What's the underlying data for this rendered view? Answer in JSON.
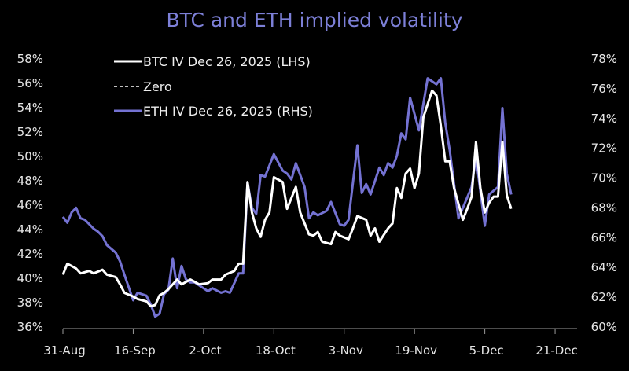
{
  "chart_data": {
    "type": "line",
    "title": "BTC and ETH implied volatility",
    "xlabel": "",
    "ylabel": "",
    "x_ticks": [
      "31-Aug",
      "16-Sep",
      "2-Oct",
      "18-Oct",
      "3-Nov",
      "19-Nov",
      "5-Dec",
      "21-Dec"
    ],
    "xlim": [
      "31-Aug",
      "26-Dec"
    ],
    "ylim_left": [
      36,
      58
    ],
    "ylim_right": [
      60,
      78
    ],
    "y_ticks_left": [
      "36%",
      "38%",
      "40%",
      "42%",
      "44%",
      "46%",
      "48%",
      "50%",
      "52%",
      "54%",
      "56%",
      "58%"
    ],
    "y_ticks_right": [
      "60%",
      "62%",
      "64%",
      "66%",
      "68%",
      "70%",
      "72%",
      "74%",
      "76%",
      "78%"
    ],
    "grid": false,
    "legend_placement": "top-left",
    "background": "#000000",
    "colors": {
      "title": "#7d80d8",
      "btc": "#ffffff",
      "eth": "#7472d2",
      "text": "#e6e6e6",
      "axis": "#9a9a9a"
    },
    "series": [
      {
        "name": "BTC IV Dec 26, 2025 (LHS)",
        "axis": "left",
        "style": "solid",
        "color": "#ffffff",
        "points": [
          [
            "31-Aug",
            40.3
          ],
          [
            "1-Sep",
            41.2
          ],
          [
            "3-Sep",
            40.8
          ],
          [
            "4-Sep",
            40.4
          ],
          [
            "6-Sep",
            40.6
          ],
          [
            "7-Sep",
            40.4
          ],
          [
            "9-Sep",
            40.7
          ],
          [
            "10-Sep",
            40.3
          ],
          [
            "12-Sep",
            40.1
          ],
          [
            "13-Sep",
            39.5
          ],
          [
            "14-Sep",
            38.8
          ],
          [
            "16-Sep",
            38.5
          ],
          [
            "17-Sep",
            38.3
          ],
          [
            "19-Sep",
            38.1
          ],
          [
            "20-Sep",
            37.7
          ],
          [
            "21-Sep",
            37.8
          ],
          [
            "22-Sep",
            38.6
          ],
          [
            "23-Sep",
            38.8
          ],
          [
            "24-Sep",
            39.1
          ],
          [
            "25-Sep",
            39.5
          ],
          [
            "26-Sep",
            39.9
          ],
          [
            "27-Sep",
            39.5
          ],
          [
            "29-Sep",
            39.9
          ],
          [
            "30-Sep",
            39.7
          ],
          [
            "1-Oct",
            39.5
          ],
          [
            "3-Oct",
            39.6
          ],
          [
            "4-Oct",
            39.9
          ],
          [
            "6-Oct",
            39.9
          ],
          [
            "7-Oct",
            40.3
          ],
          [
            "9-Oct",
            40.6
          ],
          [
            "10-Oct",
            41.2
          ],
          [
            "11-Oct",
            41.2
          ],
          [
            "12-Oct",
            47.9
          ],
          [
            "13-Oct",
            45.4
          ],
          [
            "14-Oct",
            44.1
          ],
          [
            "15-Oct",
            43.4
          ],
          [
            "16-Oct",
            44.8
          ],
          [
            "17-Oct",
            45.4
          ],
          [
            "18-Oct",
            48.3
          ],
          [
            "20-Oct",
            47.9
          ],
          [
            "21-Oct",
            45.7
          ],
          [
            "23-Oct",
            47.5
          ],
          [
            "24-Oct",
            45.4
          ],
          [
            "26-Oct",
            43.6
          ],
          [
            "27-Oct",
            43.5
          ],
          [
            "28-Oct",
            43.8
          ],
          [
            "29-Oct",
            43.0
          ],
          [
            "31-Oct",
            42.8
          ],
          [
            "1-Nov",
            43.8
          ],
          [
            "2-Nov",
            43.5
          ],
          [
            "4-Nov",
            43.2
          ],
          [
            "5-Nov",
            44.1
          ],
          [
            "6-Nov",
            45.1
          ],
          [
            "8-Nov",
            44.8
          ],
          [
            "9-Nov",
            43.5
          ],
          [
            "10-Nov",
            44.1
          ],
          [
            "11-Nov",
            43.0
          ],
          [
            "13-Nov",
            44.1
          ],
          [
            "14-Nov",
            44.5
          ],
          [
            "15-Nov",
            47.4
          ],
          [
            "16-Nov",
            46.6
          ],
          [
            "17-Nov",
            48.6
          ],
          [
            "18-Nov",
            49.0
          ],
          [
            "19-Nov",
            47.4
          ],
          [
            "20-Nov",
            48.6
          ],
          [
            "21-Nov",
            53.2
          ],
          [
            "23-Nov",
            55.4
          ],
          [
            "24-Nov",
            55.0
          ],
          [
            "25-Nov",
            52.5
          ],
          [
            "26-Nov",
            49.6
          ],
          [
            "27-Nov",
            49.6
          ],
          [
            "28-Nov",
            47.4
          ],
          [
            "29-Nov",
            46.1
          ],
          [
            "30-Nov",
            44.8
          ],
          [
            "1-Dec",
            45.7
          ],
          [
            "2-Dec",
            46.7
          ],
          [
            "3-Dec",
            51.2
          ],
          [
            "4-Dec",
            47.4
          ],
          [
            "5-Dec",
            45.4
          ],
          [
            "6-Dec",
            46.2
          ],
          [
            "7-Dec",
            46.7
          ],
          [
            "8-Dec",
            46.7
          ],
          [
            "9-Dec",
            51.2
          ],
          [
            "10-Dec",
            46.8
          ],
          [
            "11-Dec",
            45.7
          ]
        ]
      },
      {
        "name": "Zero",
        "axis": "left",
        "style": "dashed",
        "color": "#ffffff",
        "points": []
      },
      {
        "name": "ETH IV Dec 26, 2025 (RHS)",
        "axis": "right",
        "style": "solid",
        "color": "#7472d2",
        "points": [
          [
            "31-Aug",
            67.4
          ],
          [
            "1-Sep",
            67.0
          ],
          [
            "2-Sep",
            67.7
          ],
          [
            "3-Sep",
            68.0
          ],
          [
            "4-Sep",
            67.3
          ],
          [
            "5-Sep",
            67.2
          ],
          [
            "7-Sep",
            66.6
          ],
          [
            "8-Sep",
            66.4
          ],
          [
            "9-Sep",
            66.1
          ],
          [
            "10-Sep",
            65.5
          ],
          [
            "12-Sep",
            65.0
          ],
          [
            "13-Sep",
            64.4
          ],
          [
            "14-Sep",
            63.5
          ],
          [
            "16-Sep",
            61.8
          ],
          [
            "17-Sep",
            62.3
          ],
          [
            "19-Sep",
            62.1
          ],
          [
            "20-Sep",
            61.5
          ],
          [
            "21-Sep",
            60.7
          ],
          [
            "22-Sep",
            60.9
          ],
          [
            "23-Sep",
            62.2
          ],
          [
            "24-Sep",
            62.5
          ],
          [
            "25-Sep",
            64.6
          ],
          [
            "26-Sep",
            62.6
          ],
          [
            "27-Sep",
            64.1
          ],
          [
            "28-Sep",
            63.2
          ],
          [
            "29-Sep",
            63.0
          ],
          [
            "30-Sep",
            63.0
          ],
          [
            "1-Oct",
            62.8
          ],
          [
            "3-Oct",
            62.4
          ],
          [
            "4-Oct",
            62.6
          ],
          [
            "6-Oct",
            62.3
          ],
          [
            "7-Oct",
            62.4
          ],
          [
            "8-Oct",
            62.3
          ],
          [
            "10-Oct",
            63.6
          ],
          [
            "11-Oct",
            63.6
          ],
          [
            "12-Oct",
            69.7
          ],
          [
            "13-Oct",
            68.0
          ],
          [
            "14-Oct",
            67.6
          ],
          [
            "15-Oct",
            70.2
          ],
          [
            "16-Oct",
            70.1
          ],
          [
            "18-Oct",
            71.6
          ],
          [
            "20-Oct",
            70.5
          ],
          [
            "21-Oct",
            70.3
          ],
          [
            "22-Oct",
            69.9
          ],
          [
            "23-Oct",
            71.0
          ],
          [
            "25-Oct",
            69.4
          ],
          [
            "26-Oct",
            67.3
          ],
          [
            "27-Oct",
            67.7
          ],
          [
            "28-Oct",
            67.5
          ],
          [
            "30-Oct",
            67.8
          ],
          [
            "31-Oct",
            68.4
          ],
          [
            "2-Nov",
            66.9
          ],
          [
            "3-Nov",
            66.8
          ],
          [
            "4-Nov",
            67.2
          ],
          [
            "6-Nov",
            72.2
          ],
          [
            "7-Nov",
            69.0
          ],
          [
            "8-Nov",
            69.6
          ],
          [
            "9-Nov",
            68.9
          ],
          [
            "11-Nov",
            70.7
          ],
          [
            "12-Nov",
            70.2
          ],
          [
            "13-Nov",
            71.0
          ],
          [
            "14-Nov",
            70.7
          ],
          [
            "15-Nov",
            71.5
          ],
          [
            "16-Nov",
            73.0
          ],
          [
            "17-Nov",
            72.6
          ],
          [
            "18-Nov",
            75.4
          ],
          [
            "20-Nov",
            73.2
          ],
          [
            "22-Nov",
            76.7
          ],
          [
            "24-Nov",
            76.3
          ],
          [
            "25-Nov",
            76.7
          ],
          [
            "26-Nov",
            73.7
          ],
          [
            "27-Nov",
            71.9
          ],
          [
            "29-Nov",
            67.3
          ],
          [
            "2-Dec",
            69.4
          ],
          [
            "3-Dec",
            71.4
          ],
          [
            "5-Dec",
            66.8
          ],
          [
            "6-Dec",
            68.9
          ],
          [
            "8-Dec",
            69.4
          ],
          [
            "9-Dec",
            74.7
          ],
          [
            "10-Dec",
            70.3
          ],
          [
            "11-Dec",
            68.9
          ]
        ]
      }
    ]
  }
}
